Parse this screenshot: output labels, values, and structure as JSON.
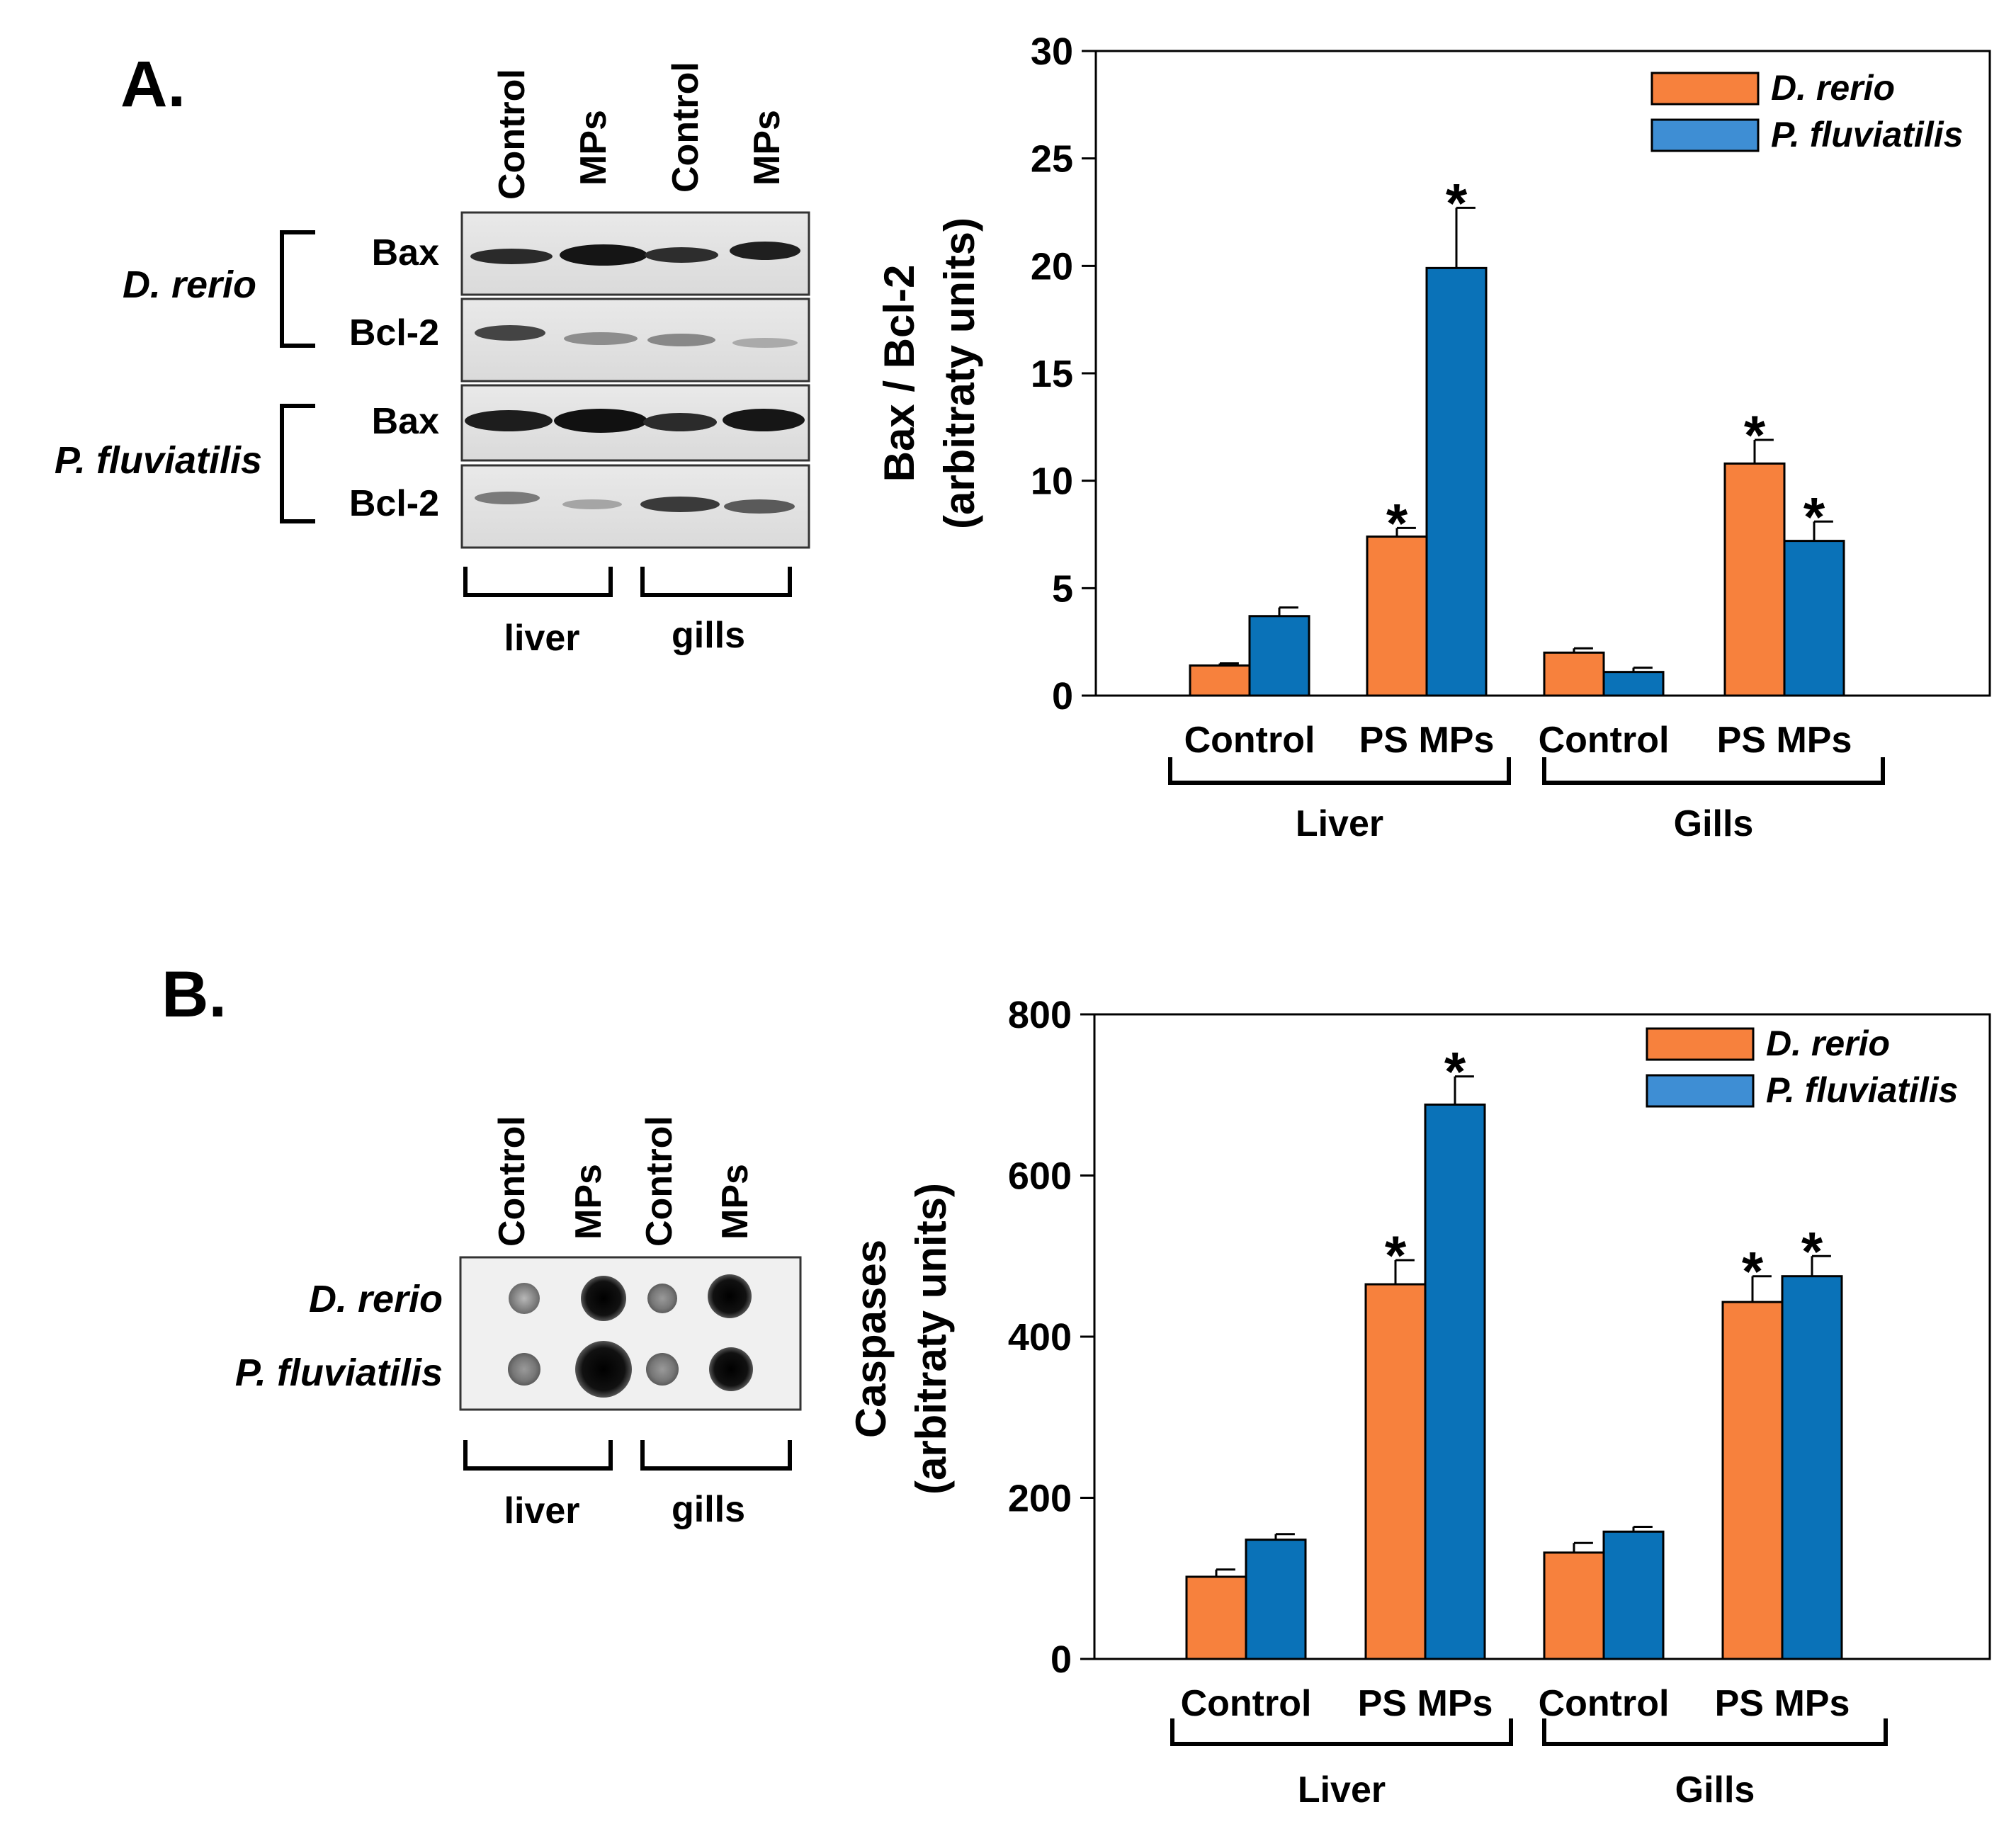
{
  "panel_a": {
    "letter": "A.",
    "blot": {
      "lanes": [
        "Control",
        "MPs",
        "Control",
        "MPs"
      ],
      "species": [
        "D. rerio",
        "P. fluviatilis"
      ],
      "proteins": [
        "Bax",
        "Bcl-2"
      ],
      "tissues": [
        "liver",
        "gills"
      ]
    }
  },
  "panel_b": {
    "letter": "B.",
    "blot": {
      "lanes": [
        "Control",
        "MPs",
        "Control",
        "MPs"
      ],
      "species": [
        "D. rerio",
        "P. fluviatilis"
      ],
      "tissues": [
        "liver",
        "gills"
      ]
    }
  },
  "colors": {
    "drerio": "#F7813D",
    "pfluv": "#0A72B8",
    "pfluv_legend": "#3E8ED4"
  },
  "chart_data": [
    {
      "type": "bar",
      "title": "",
      "ylabel_line1": "Bax / Bcl-2",
      "ylabel_line2": "(arbitraty units)",
      "ylim": [
        0,
        30
      ],
      "yticks": [
        0,
        5,
        10,
        15,
        20,
        25,
        30
      ],
      "categories": [
        "Control",
        "PS MPs",
        "Control",
        "PS MPs"
      ],
      "groups": [
        {
          "label": "Liver",
          "categories": [
            0,
            1
          ]
        },
        {
          "label": "Gills",
          "categories": [
            2,
            3
          ]
        }
      ],
      "series": [
        {
          "name": "D. rerio",
          "values": [
            1.4,
            7.4,
            2.0,
            10.8
          ],
          "errors": [
            0.1,
            0.4,
            0.2,
            1.1
          ],
          "significant": [
            false,
            true,
            false,
            true
          ]
        },
        {
          "name": "P. fluviatilis",
          "values": [
            3.7,
            19.9,
            1.1,
            7.2
          ],
          "errors": [
            0.4,
            2.8,
            0.2,
            0.9
          ],
          "significant": [
            false,
            true,
            false,
            true
          ]
        }
      ],
      "marker": "*",
      "legend": "top-right"
    },
    {
      "type": "bar",
      "title": "",
      "ylabel_line1": "Caspases",
      "ylabel_line2": "(arbitraty units)",
      "ylim": [
        0,
        800
      ],
      "yticks": [
        0,
        200,
        400,
        600,
        800
      ],
      "categories": [
        "Control",
        "PS MPs",
        "Control",
        "PS MPs"
      ],
      "groups": [
        {
          "label": "Liver",
          "categories": [
            0,
            1
          ]
        },
        {
          "label": "Gills",
          "categories": [
            2,
            3
          ]
        }
      ],
      "series": [
        {
          "name": "D. rerio",
          "values": [
            102,
            465,
            132,
            443
          ],
          "errors": [
            9,
            30,
            12,
            32
          ],
          "significant": [
            false,
            true,
            false,
            true
          ]
        },
        {
          "name": "P. fluviatilis",
          "values": [
            148,
            688,
            158,
            475
          ],
          "errors": [
            7,
            35,
            6,
            25
          ],
          "significant": [
            false,
            true,
            false,
            true
          ]
        }
      ],
      "marker": "*",
      "legend": "top-right"
    }
  ]
}
